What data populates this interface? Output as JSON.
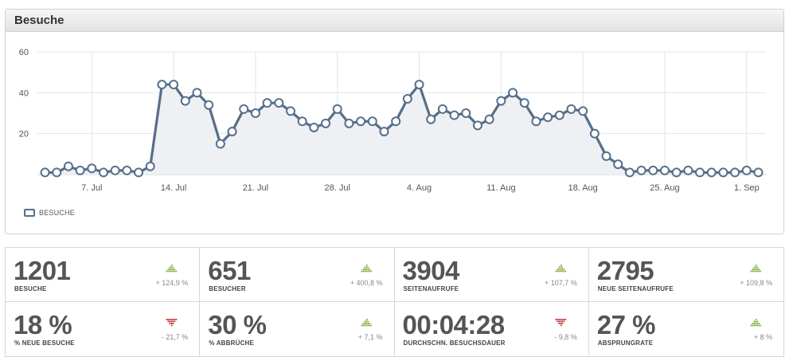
{
  "panel": {
    "title": "Besuche"
  },
  "legend": {
    "label": "BESUCHE"
  },
  "chart_data": {
    "type": "line",
    "title": "",
    "ylim": [
      0,
      60
    ],
    "yticks": [
      20,
      40,
      60
    ],
    "x_tick_labels": [
      "7. Jul",
      "14. Jul",
      "21. Jul",
      "28. Jul",
      "4. Aug",
      "11. Aug",
      "18. Aug",
      "25. Aug",
      "1. Sep"
    ],
    "x_tick_dates": [
      "2013-07-07",
      "2013-07-14",
      "2013-07-21",
      "2013-07-28",
      "2013-08-04",
      "2013-08-11",
      "2013-08-18",
      "2013-08-25",
      "2013-09-01"
    ],
    "series": [
      {
        "name": "BESUCHE",
        "color": "#566f8a",
        "x": [
          "2013-07-03",
          "2013-07-04",
          "2013-07-05",
          "2013-07-06",
          "2013-07-07",
          "2013-07-08",
          "2013-07-09",
          "2013-07-10",
          "2013-07-11",
          "2013-07-12",
          "2013-07-13",
          "2013-07-14",
          "2013-07-15",
          "2013-07-16",
          "2013-07-17",
          "2013-07-18",
          "2013-07-19",
          "2013-07-20",
          "2013-07-21",
          "2013-07-22",
          "2013-07-23",
          "2013-07-24",
          "2013-07-25",
          "2013-07-26",
          "2013-07-27",
          "2013-07-28",
          "2013-07-29",
          "2013-07-30",
          "2013-07-31",
          "2013-08-01",
          "2013-08-02",
          "2013-08-03",
          "2013-08-04",
          "2013-08-05",
          "2013-08-06",
          "2013-08-07",
          "2013-08-08",
          "2013-08-09",
          "2013-08-10",
          "2013-08-11",
          "2013-08-12",
          "2013-08-13",
          "2013-08-14",
          "2013-08-15",
          "2013-08-16",
          "2013-08-17",
          "2013-08-18",
          "2013-08-19",
          "2013-08-20",
          "2013-08-21",
          "2013-08-22",
          "2013-08-23",
          "2013-08-24",
          "2013-08-25",
          "2013-08-26",
          "2013-08-27",
          "2013-08-28",
          "2013-08-29",
          "2013-08-30",
          "2013-08-31",
          "2013-09-01",
          "2013-09-02"
        ],
        "values": [
          1,
          1,
          4,
          2,
          3,
          1,
          2,
          2,
          1,
          4,
          44,
          44,
          36,
          40,
          34,
          15,
          21,
          32,
          30,
          35,
          35,
          31,
          26,
          23,
          25,
          32,
          25,
          26,
          26,
          21,
          26,
          37,
          44,
          27,
          32,
          29,
          30,
          24,
          27,
          36,
          40,
          35,
          26,
          28,
          29,
          32,
          31,
          20,
          9,
          5,
          1,
          2,
          2,
          2,
          1,
          2,
          1,
          1,
          1,
          1,
          2,
          1
        ]
      }
    ],
    "grid": true,
    "legend_position": "bottom-left"
  },
  "stats": [
    {
      "value": "1201",
      "label": "BESUCHE",
      "change": "+ 124,9 %",
      "trend": "up"
    },
    {
      "value": "651",
      "label": "BESUCHER",
      "change": "+ 400,8 %",
      "trend": "up"
    },
    {
      "value": "3904",
      "label": "SEITENAUFRUFE",
      "change": "+ 107,7 %",
      "trend": "up"
    },
    {
      "value": "2795",
      "label": "NEUE SEITENAUFRUFE",
      "change": "+ 109,8 %",
      "trend": "up"
    },
    {
      "value": "18 %",
      "label": "% NEUE BESUCHE",
      "change": "- 21,7 %",
      "trend": "down"
    },
    {
      "value": "30 %",
      "label": "% ABBRÜCHE",
      "change": "+ 7,1 %",
      "trend": "up"
    },
    {
      "value": "00:04:28",
      "label": "DURCHSCHN. BESUCHSDAUER",
      "change": "- 9,8 %",
      "trend": "down"
    },
    {
      "value": "27 %",
      "label": "ABSPRUNGRATE",
      "change": "+ 8 %",
      "trend": "up"
    }
  ],
  "colors": {
    "up": "#7ea836",
    "down": "#c3272b",
    "line": "#566f8a",
    "fill": "#eef0f4",
    "grid": "#e4e4e4"
  }
}
